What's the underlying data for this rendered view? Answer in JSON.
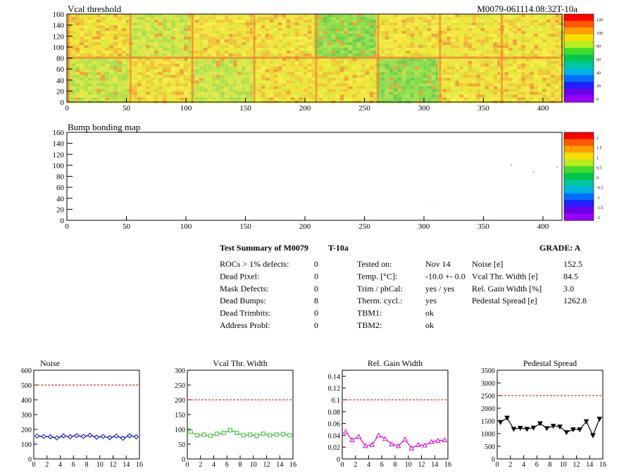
{
  "maps": {
    "vcal": {
      "title": "Vcal threshold",
      "id_label": "M0079-061114.08:32T-10a",
      "yticks": [
        "0",
        "20",
        "40",
        "60",
        "80",
        "100",
        "120",
        "140",
        "160"
      ],
      "xticks": [
        "0",
        "50",
        "100",
        "150",
        "200",
        "250",
        "300",
        "350",
        "400"
      ],
      "palette_ticks": [
        "0",
        "20",
        "40",
        "60",
        "80",
        "100",
        "120"
      ]
    },
    "bump": {
      "title": "Bump bonding map",
      "yticks": [
        "0",
        "20",
        "40",
        "60",
        "80",
        "100",
        "120",
        "140",
        "160"
      ],
      "xticks": [
        "0",
        "50",
        "100",
        "150",
        "200",
        "250",
        "300",
        "350",
        "400"
      ],
      "palette_ticks": [
        "-2",
        "-1.5",
        "-1",
        "-0.5",
        "0",
        "0.5",
        "1",
        "1.5",
        "2"
      ]
    }
  },
  "summary": {
    "title": "Test Summary of M0079",
    "temp_tag": "T-10a",
    "grade": "GRADE:  A",
    "col1": [
      {
        "label": "ROCs > 1% defects:",
        "value": "0"
      },
      {
        "label": "Dead Pixel:",
        "value": "0"
      },
      {
        "label": "Mask Defects:",
        "value": "0"
      },
      {
        "label": "Dead Bumps:",
        "value": "8"
      },
      {
        "label": "Dead Trimbits:",
        "value": "0"
      },
      {
        "label": "Address Probl:",
        "value": "0"
      }
    ],
    "col2": [
      {
        "label": "Tested on:",
        "value": "Nov 14"
      },
      {
        "label": "Temp. [°C]:",
        "value": "-10.0 +- 0.0"
      },
      {
        "label": "Trim / phCal:",
        "value": "yes / yes"
      },
      {
        "label": "Therm. cycl.:",
        "value": "yes"
      },
      {
        "label": "TBM1:",
        "value": "ok"
      },
      {
        "label": "TBM2:",
        "value": "ok"
      }
    ],
    "col3": [
      {
        "label": "Noise [e]",
        "value": "152.5"
      },
      {
        "label": "Vcal Thr. Width [e]",
        "value": "84.5"
      },
      {
        "label": "Rel. Gain Width [%]",
        "value": "3.0"
      },
      {
        "label": "Pedestal Spread [e]",
        "value": "1262.8"
      }
    ]
  },
  "chart_data": [
    {
      "type": "line",
      "title": "Noise",
      "x": [
        0,
        1,
        2,
        3,
        4,
        5,
        6,
        7,
        8,
        9,
        10,
        11,
        12,
        13,
        14,
        15
      ],
      "xlim": [
        0,
        16
      ],
      "ylim": [
        0,
        600
      ],
      "xticks": [
        "0",
        "2",
        "4",
        "6",
        "8",
        "10",
        "12",
        "14",
        "16"
      ],
      "yticks": [
        "0",
        "100",
        "200",
        "300",
        "400",
        "500",
        "600"
      ],
      "threshold": 500,
      "color": "#0000cc",
      "marker": "diamond",
      "values": [
        155,
        152,
        150,
        142,
        156,
        150,
        158,
        152,
        160,
        147,
        152,
        144,
        155,
        140,
        157,
        150
      ]
    },
    {
      "type": "line",
      "title": "Vcal Thr. Width",
      "x": [
        0,
        1,
        2,
        3,
        4,
        5,
        6,
        7,
        8,
        9,
        10,
        11,
        12,
        13,
        14,
        15
      ],
      "xlim": [
        0,
        16
      ],
      "ylim": [
        0,
        300
      ],
      "xticks": [
        "0",
        "2",
        "4",
        "6",
        "8",
        "10",
        "12",
        "14",
        "16"
      ],
      "yticks": [
        "0",
        "50",
        "100",
        "150",
        "200",
        "250",
        "300"
      ],
      "threshold": 200,
      "color": "#33bb33",
      "marker": "square",
      "values": [
        92,
        80,
        82,
        78,
        85,
        88,
        97,
        88,
        80,
        82,
        78,
        85,
        80,
        82,
        84,
        80
      ]
    },
    {
      "type": "line",
      "title": "Rel. Gain Width",
      "x": [
        0,
        1,
        2,
        3,
        4,
        5,
        6,
        7,
        8,
        9,
        10,
        11,
        12,
        13,
        14,
        15
      ],
      "xlim": [
        0,
        16
      ],
      "ylim": [
        0,
        0.15
      ],
      "xticks": [
        "0",
        "2",
        "4",
        "6",
        "8",
        "10",
        "12",
        "14",
        "16"
      ],
      "yticks": [
        "0",
        "0.02",
        "0.04",
        "0.06",
        "0.08",
        "0.1",
        "0.12",
        "0.14"
      ],
      "threshold": 0.1,
      "color": "#dd00dd",
      "marker": "triangle",
      "values": [
        0.046,
        0.032,
        0.038,
        0.022,
        0.024,
        0.04,
        0.034,
        0.025,
        0.022,
        0.033,
        0.018,
        0.024,
        0.023,
        0.029,
        0.031,
        0.032
      ]
    },
    {
      "type": "line",
      "title": "Pedestal Spread",
      "x": [
        0,
        1,
        2,
        3,
        4,
        5,
        6,
        7,
        8,
        9,
        10,
        11,
        12,
        13,
        14,
        15
      ],
      "xlim": [
        0,
        16
      ],
      "ylim": [
        0,
        3500
      ],
      "xticks": [
        "0",
        "2",
        "4",
        "6",
        "8",
        "10",
        "12",
        "14",
        "16"
      ],
      "yticks": [
        "0",
        "500",
        "1000",
        "1500",
        "2000",
        "2500",
        "3000",
        "3500"
      ],
      "threshold": 2500,
      "color": "#000000",
      "marker": "triangle-down",
      "values": [
        1450,
        1620,
        1180,
        1220,
        1180,
        1230,
        1400,
        1210,
        1300,
        1270,
        1050,
        1160,
        1160,
        1480,
        930,
        1580
      ]
    }
  ]
}
